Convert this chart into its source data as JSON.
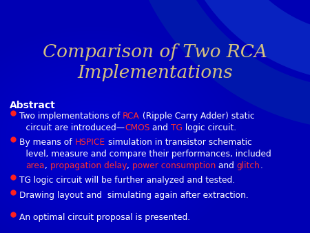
{
  "title_line1": "Comparison of Two RCA",
  "title_line2": "Implementations",
  "title_color": "#D4C080",
  "bg_base": "#0000BB",
  "abstract_label": "Abstract",
  "bullet_color": "#FF2020",
  "text_color": "#FFFFFF",
  "font_size_title": 19,
  "font_size_abstract": 10,
  "font_size_bullet": 8.8,
  "bullet1_line1": [
    [
      "Two implementations of ",
      "#FFFFFF"
    ],
    [
      "RCA",
      "#FF3030"
    ],
    [
      " (Ripple Carry Adder) static",
      "#FFFFFF"
    ]
  ],
  "bullet1_line2": [
    [
      "    circuit are introduced—",
      "#FFFFFF"
    ],
    [
      "CMOS",
      "#FF3030"
    ],
    [
      " and ",
      "#FFFFFF"
    ],
    [
      "TG",
      "#FF3030"
    ],
    [
      " logic circuit.",
      "#FFFFFF"
    ]
  ],
  "bullet2_line1": [
    [
      "By means of ",
      "#FFFFFF"
    ],
    [
      "HSPICE",
      "#FF3030"
    ],
    [
      " simulation in transistor schematic",
      "#FFFFFF"
    ]
  ],
  "bullet2_line2": [
    [
      "    level, measure and compare their performances, included",
      "#FFFFFF"
    ]
  ],
  "bullet2_line3": [
    [
      "    ",
      "#FFFFFF"
    ],
    [
      "area",
      "#FF3030"
    ],
    [
      ", ",
      "#FFFFFF"
    ],
    [
      "propagation delay",
      "#FF3030"
    ],
    [
      ", ",
      "#FFFFFF"
    ],
    [
      "power consumption",
      "#FF3030"
    ],
    [
      " and ",
      "#FFFFFF"
    ],
    [
      "glitch",
      "#FF3030"
    ],
    [
      ".",
      "#FFFFFF"
    ]
  ],
  "bullet3": "TG logic circuit will be further analyzed and tested.",
  "bullet4": "Drawing layout and  simulating again after extraction.",
  "bullet5": "An optimal circuit proposal is presented."
}
